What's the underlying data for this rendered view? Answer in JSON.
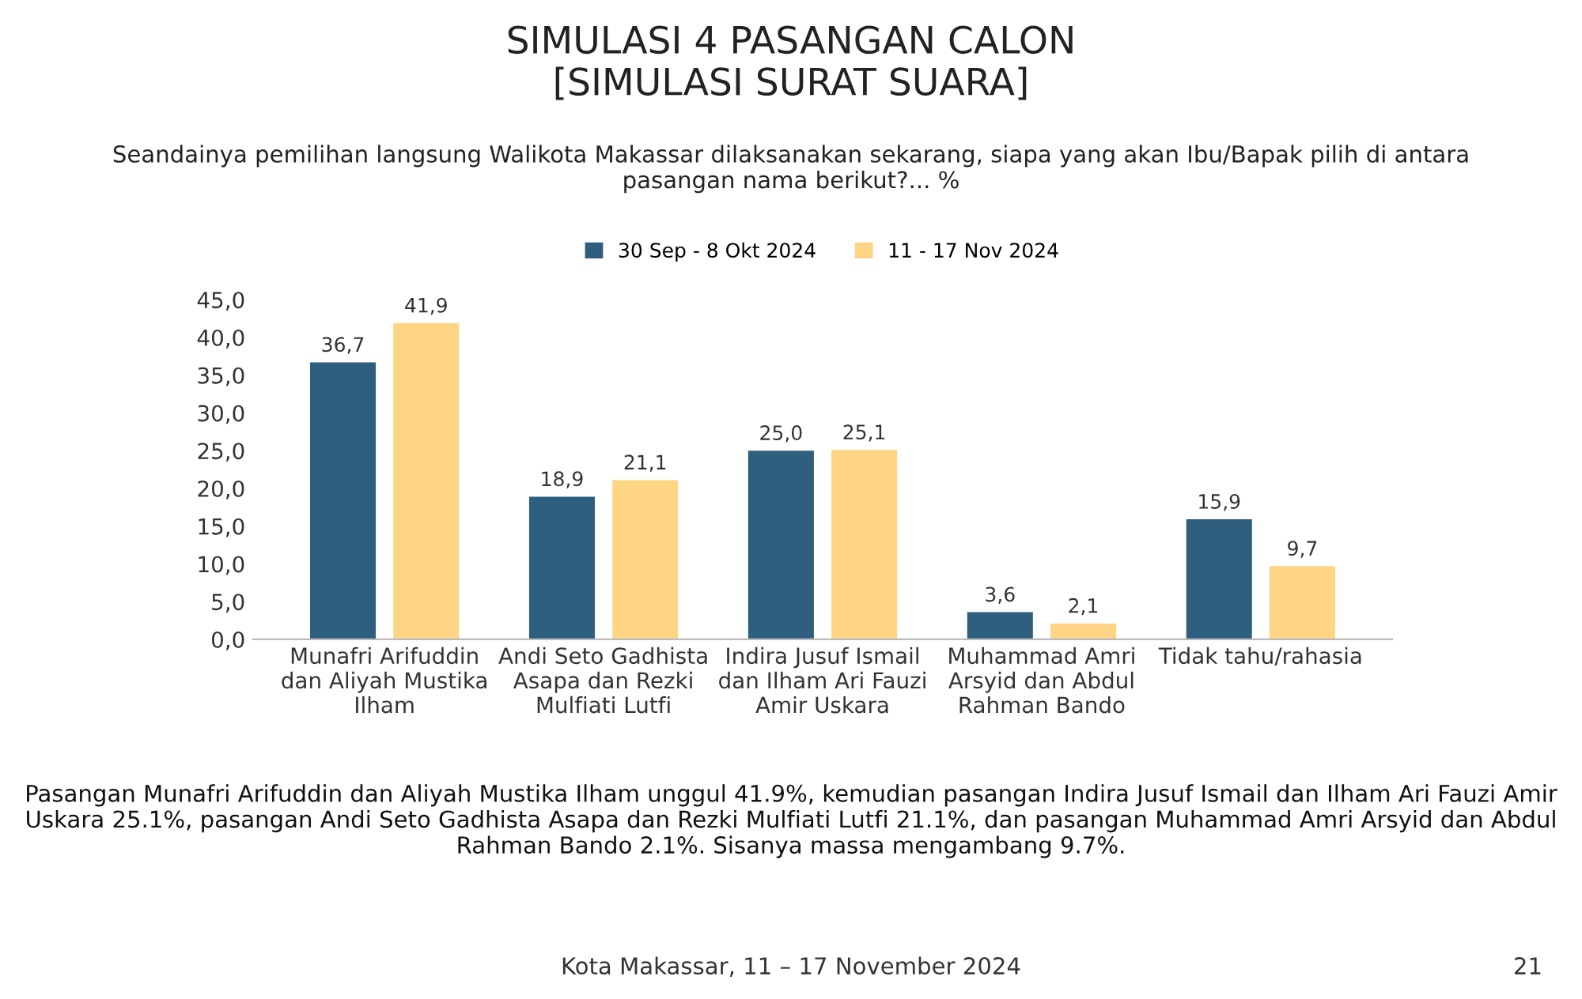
{
  "chart_data": {
    "type": "bar",
    "title": "SIMULASI 4 PASANGAN CALON\n[SIMULASI SURAT SUARA]",
    "subtitle": "Seandainya pemilihan langsung Walikota Makassar dilaksanakan sekarang, siapa yang akan Ibu/Bapak pilih di antara\npasangan nama berikut?... %",
    "categories": [
      "Munafri Arifuddin\ndan Aliyah Mustika\nIlham",
      "Andi Seto Gadhista\nAsapa dan Rezki\nMulfiati Lutfi",
      "Indira Jusuf Ismail\ndan Ilham Ari Fauzi\nAmir Uskara",
      "Muhammad Amri\nArsyid dan Abdul\nRahman Bando",
      "Tidak tahu/rahasia"
    ],
    "series": [
      {
        "name": "30 Sep - 8 Okt 2024",
        "color": "#2e5f7f",
        "values": [
          36.7,
          18.9,
          25.0,
          3.6,
          15.9
        ],
        "value_labels": [
          "36,7",
          "18,9",
          "25,0",
          "3,6",
          "15,9"
        ]
      },
      {
        "name": "11 - 17 Nov 2024",
        "color": "#fdd585",
        "values": [
          41.9,
          21.1,
          25.1,
          2.1,
          9.7
        ],
        "value_labels": [
          "41,9",
          "21,1",
          "25,1",
          "2,1",
          "9,7"
        ]
      }
    ],
    "ylim": [
      0,
      45
    ],
    "yticks": [
      {
        "value": 0,
        "label": "0,0"
      },
      {
        "value": 5,
        "label": "5,0"
      },
      {
        "value": 10,
        "label": "10,0"
      },
      {
        "value": 15,
        "label": "15,0"
      },
      {
        "value": 20,
        "label": "20,0"
      },
      {
        "value": 25,
        "label": "25,0"
      },
      {
        "value": 30,
        "label": "30,0"
      },
      {
        "value": 35,
        "label": "35,0"
      },
      {
        "value": 40,
        "label": "40,0"
      },
      {
        "value": 45,
        "label": "45,0"
      }
    ],
    "legend": "top",
    "grid": false,
    "annotations": [
      "Pasangan Munafri Arifuddin dan Aliyah Mustika Ilham unggul 41.9%, kemudian pasangan Indira Jusuf Ismail dan Ilham Ari Fauzi Amir Uskara 25.1%, pasangan Andi Seto Gadhista Asapa dan Rezki Mulfiati Lutfi 21.1%, dan pasangan Muhammad Amri Arsyid dan Abdul Rahman Bando 2.1%. Sisanya massa mengambang 9.7%.",
      "Kota Makassar, 11 – 17 November 2024",
      "21"
    ]
  }
}
